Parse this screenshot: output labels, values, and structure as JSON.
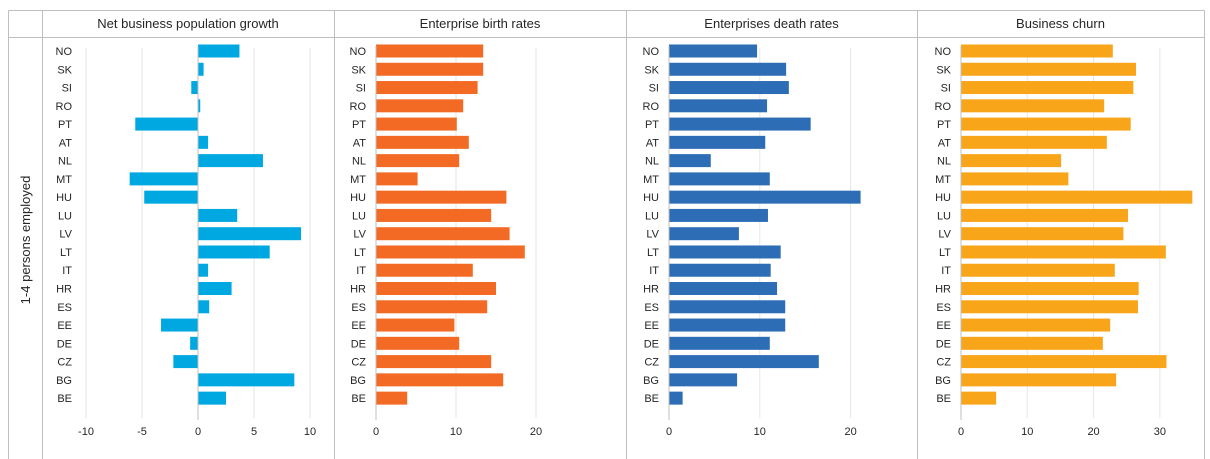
{
  "caption": "",
  "row_label": "1-4 persons employed",
  "chart_data": [
    {
      "type": "bar",
      "orientation": "horizontal",
      "title": "Net business population growth",
      "categories": [
        "NO",
        "SK",
        "SI",
        "RO",
        "PT",
        "AT",
        "NL",
        "MT",
        "HU",
        "LU",
        "LV",
        "LT",
        "IT",
        "HR",
        "ES",
        "EE",
        "DE",
        "CZ",
        "BG",
        "BE"
      ],
      "values": [
        3.7,
        0.5,
        -0.6,
        0.2,
        -5.6,
        0.9,
        5.8,
        -6.1,
        -4.8,
        3.5,
        9.2,
        6.4,
        0.9,
        3.0,
        1.0,
        -3.3,
        -0.7,
        -2.2,
        8.6,
        2.5
      ],
      "xlim": [
        -10,
        10
      ],
      "ticks": [
        -10,
        -5,
        0,
        5,
        10
      ],
      "color": "#00A8E1",
      "xlabel": "",
      "ylabel": ""
    },
    {
      "type": "bar",
      "orientation": "horizontal",
      "title": "Enterprise birth rates",
      "categories": [
        "NO",
        "SK",
        "SI",
        "RO",
        "PT",
        "AT",
        "NL",
        "MT",
        "HU",
        "LU",
        "LV",
        "LT",
        "IT",
        "HR",
        "ES",
        "EE",
        "DE",
        "CZ",
        "BG",
        "BE"
      ],
      "values": [
        13.4,
        13.4,
        12.7,
        10.9,
        10.1,
        11.6,
        10.4,
        5.2,
        16.3,
        14.4,
        16.7,
        18.6,
        12.1,
        15.0,
        13.9,
        9.8,
        10.4,
        14.4,
        15.9,
        3.9
      ],
      "xlim": [
        0,
        25
      ],
      "ticks": [
        0,
        10,
        20
      ],
      "color": "#F26A23",
      "xlabel": "",
      "ylabel": ""
    },
    {
      "type": "bar",
      "orientation": "horizontal",
      "title": "Enterprises death rates",
      "categories": [
        "NO",
        "SK",
        "SI",
        "RO",
        "PT",
        "AT",
        "NL",
        "MT",
        "HU",
        "LU",
        "LV",
        "LT",
        "IT",
        "HR",
        "ES",
        "EE",
        "DE",
        "CZ",
        "BG",
        "BE"
      ],
      "values": [
        9.7,
        12.9,
        13.2,
        10.8,
        15.6,
        10.6,
        4.6,
        11.1,
        21.1,
        10.9,
        7.7,
        12.3,
        11.2,
        11.9,
        12.8,
        12.8,
        11.1,
        16.5,
        7.5,
        1.5
      ],
      "xlim": [
        0,
        25
      ],
      "ticks": [
        0,
        10,
        20
      ],
      "color": "#2D6DB5",
      "xlabel": "",
      "ylabel": ""
    },
    {
      "type": "bar",
      "orientation": "horizontal",
      "title": "Business churn",
      "categories": [
        "NO",
        "SK",
        "SI",
        "RO",
        "PT",
        "AT",
        "NL",
        "MT",
        "HU",
        "LU",
        "LV",
        "LT",
        "IT",
        "HR",
        "ES",
        "EE",
        "DE",
        "CZ",
        "BG",
        "BE"
      ],
      "values": [
        22.9,
        26.4,
        26.0,
        21.6,
        25.6,
        22.0,
        15.1,
        16.2,
        34.9,
        25.2,
        24.5,
        30.9,
        23.2,
        26.8,
        26.7,
        22.5,
        21.4,
        31.0,
        23.4,
        5.3
      ],
      "xlim": [
        0,
        35
      ],
      "ticks": [
        0,
        10,
        20,
        30
      ],
      "color": "#F9A51A",
      "xlabel": "",
      "ylabel": ""
    }
  ]
}
